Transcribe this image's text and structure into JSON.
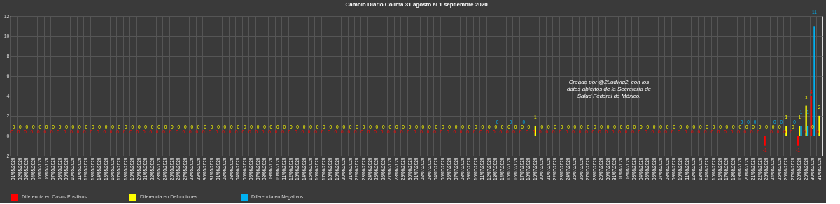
{
  "chart_data": {
    "type": "bar",
    "title": "Cambio Diario Colima 31 agosto al 1 septiembre 2020",
    "categories": [
      "01/05/2020",
      "02/05/2020",
      "03/05/2020",
      "04/05/2020",
      "05/05/2020",
      "06/05/2020",
      "07/05/2020",
      "08/05/2020",
      "09/05/2020",
      "10/05/2020",
      "11/05/2020",
      "12/05/2020",
      "13/05/2020",
      "14/05/2020",
      "15/05/2020",
      "16/05/2020",
      "17/05/2020",
      "18/05/2020",
      "19/05/2020",
      "20/05/2020",
      "21/05/2020",
      "22/05/2020",
      "23/05/2020",
      "24/05/2020",
      "25/05/2020",
      "26/05/2020",
      "27/05/2020",
      "28/05/2020",
      "29/05/2020",
      "30/05/2020",
      "31/05/2020",
      "01/06/2020",
      "02/06/2020",
      "03/06/2020",
      "04/06/2020",
      "05/06/2020",
      "06/06/2020",
      "07/06/2020",
      "08/06/2020",
      "09/06/2020",
      "10/06/2020",
      "11/06/2020",
      "12/06/2020",
      "13/06/2020",
      "14/06/2020",
      "15/06/2020",
      "16/06/2020",
      "17/06/2020",
      "18/06/2020",
      "19/06/2020",
      "20/06/2020",
      "21/06/2020",
      "22/06/2020",
      "23/06/2020",
      "24/06/2020",
      "25/06/2020",
      "26/06/2020",
      "27/06/2020",
      "28/06/2020",
      "29/06/2020",
      "30/06/2020",
      "01/07/2020",
      "02/07/2020",
      "03/07/2020",
      "04/07/2020",
      "05/07/2020",
      "06/07/2020",
      "07/07/2020",
      "08/07/2020",
      "09/07/2020",
      "10/07/2020",
      "11/07/2020",
      "12/07/2020",
      "13/07/2020",
      "14/07/2020",
      "15/07/2020",
      "16/07/2020",
      "17/07/2020",
      "18/07/2020",
      "19/07/2020",
      "20/07/2020",
      "21/07/2020",
      "22/07/2020",
      "23/07/2020",
      "24/07/2020",
      "25/07/2020",
      "26/07/2020",
      "27/07/2020",
      "28/07/2020",
      "29/07/2020",
      "30/07/2020",
      "31/07/2020",
      "01/08/2020",
      "02/08/2020",
      "03/08/2020",
      "04/08/2020",
      "05/08/2020",
      "06/08/2020",
      "07/08/2020",
      "08/08/2020",
      "09/08/2020",
      "10/08/2020",
      "11/08/2020",
      "12/08/2020",
      "13/08/2020",
      "14/08/2020",
      "15/08/2020",
      "16/08/2020",
      "17/08/2020",
      "18/08/2020",
      "19/08/2020",
      "20/08/2020",
      "21/08/2020",
      "22/08/2020",
      "23/08/2020",
      "24/08/2020",
      "25/08/2020",
      "26/08/2020",
      "27/08/2020",
      "28/08/2020",
      "29/08/2020",
      "30/08/2020",
      "31/08/2020"
    ],
    "series": [
      {
        "name": "Diferencia en Casos Positivos",
        "color": "#ff0000",
        "values": [
          0,
          0,
          0,
          0,
          0,
          0,
          0,
          0,
          0,
          0,
          0,
          0,
          0,
          0,
          0,
          0,
          0,
          0,
          0,
          0,
          0,
          0,
          0,
          0,
          0,
          0,
          0,
          0,
          0,
          0,
          0,
          0,
          0,
          0,
          0,
          0,
          0,
          0,
          0,
          0,
          0,
          0,
          0,
          0,
          0,
          0,
          0,
          0,
          0,
          0,
          0,
          0,
          0,
          0,
          0,
          0,
          0,
          0,
          0,
          0,
          0,
          0,
          0,
          0,
          0,
          0,
          0,
          0,
          0,
          0,
          0,
          0,
          0,
          0,
          0,
          0,
          0,
          0,
          0,
          0,
          0,
          0,
          0,
          0,
          0,
          0,
          0,
          0,
          0,
          0,
          0,
          0,
          0,
          0,
          0,
          0,
          0,
          0,
          0,
          0,
          0,
          0,
          0,
          0,
          0,
          0,
          0,
          0,
          0,
          0,
          0,
          0,
          0,
          0,
          -1,
          0,
          0,
          0,
          0,
          -1,
          0,
          4,
          0
        ]
      },
      {
        "name": "Diferencia en Defunciones",
        "color": "#ffff00",
        "values": [
          0,
          0,
          0,
          0,
          0,
          0,
          0,
          0,
          0,
          0,
          0,
          0,
          0,
          0,
          0,
          0,
          0,
          0,
          0,
          0,
          0,
          0,
          0,
          0,
          0,
          0,
          0,
          0,
          0,
          0,
          0,
          0,
          0,
          0,
          0,
          0,
          0,
          0,
          0,
          0,
          0,
          0,
          0,
          0,
          0,
          0,
          0,
          0,
          0,
          0,
          0,
          0,
          0,
          0,
          0,
          0,
          0,
          0,
          0,
          0,
          0,
          0,
          0,
          0,
          0,
          0,
          0,
          0,
          0,
          0,
          0,
          0,
          0,
          0,
          0,
          0,
          0,
          0,
          0,
          1,
          0,
          0,
          0,
          0,
          0,
          0,
          0,
          0,
          0,
          0,
          0,
          0,
          0,
          0,
          0,
          0,
          0,
          0,
          0,
          0,
          0,
          0,
          0,
          0,
          0,
          0,
          0,
          0,
          0,
          0,
          0,
          0,
          0,
          0,
          0,
          0,
          0,
          1,
          0,
          1,
          3,
          0,
          2
        ]
      },
      {
        "name": "Diferencia en Negativos",
        "color": "#00b0f0",
        "values": [
          null,
          null,
          null,
          null,
          null,
          null,
          null,
          null,
          null,
          null,
          null,
          null,
          null,
          null,
          null,
          null,
          null,
          null,
          null,
          null,
          null,
          null,
          null,
          null,
          null,
          null,
          null,
          null,
          null,
          null,
          null,
          null,
          null,
          null,
          null,
          null,
          null,
          null,
          null,
          null,
          null,
          null,
          null,
          null,
          null,
          null,
          null,
          null,
          null,
          null,
          null,
          null,
          null,
          null,
          null,
          null,
          null,
          null,
          null,
          null,
          null,
          null,
          null,
          null,
          null,
          null,
          null,
          null,
          null,
          null,
          null,
          null,
          null,
          0,
          null,
          0,
          null,
          0,
          null,
          null,
          null,
          null,
          null,
          null,
          null,
          null,
          null,
          null,
          null,
          null,
          null,
          null,
          null,
          null,
          null,
          null,
          null,
          null,
          null,
          null,
          null,
          null,
          null,
          null,
          null,
          null,
          null,
          null,
          null,
          null,
          0,
          0,
          0,
          null,
          null,
          0,
          0,
          null,
          0,
          1,
          1,
          11,
          null
        ]
      }
    ],
    "ylim": [
      -2,
      12
    ],
    "yticks": [
      -2,
      0,
      2,
      4,
      6,
      8,
      10,
      12
    ],
    "grid": true,
    "legend": "bottom",
    "data_labels": true,
    "annotations": [
      "Creado por @2Ludwig2, con los datos abiertos de la Secretaría de Salud Federal de México."
    ]
  }
}
